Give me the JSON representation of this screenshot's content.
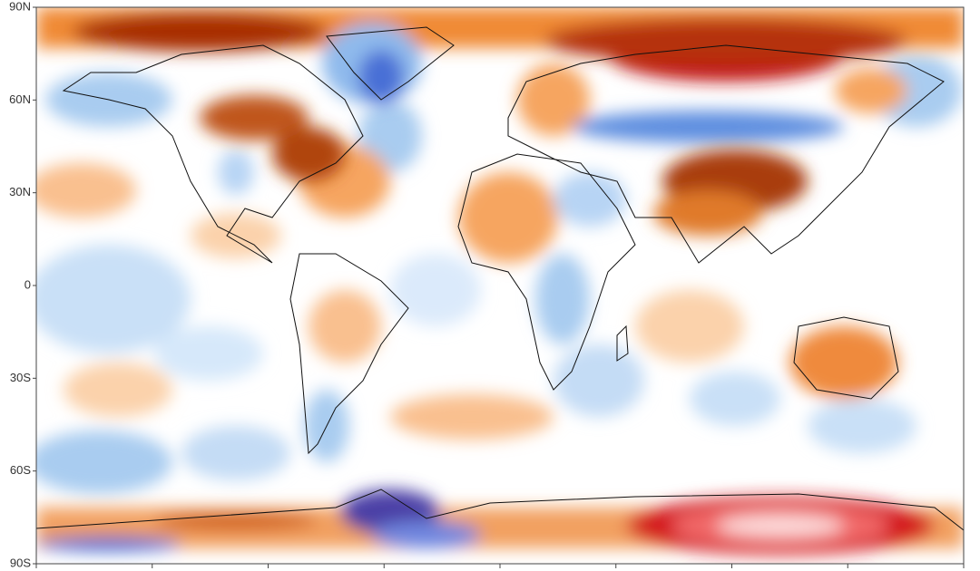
{
  "map": {
    "lat_labels": [
      "90N",
      "60N",
      "30N",
      "0",
      "30S",
      "60S",
      "90S"
    ]
  }
}
